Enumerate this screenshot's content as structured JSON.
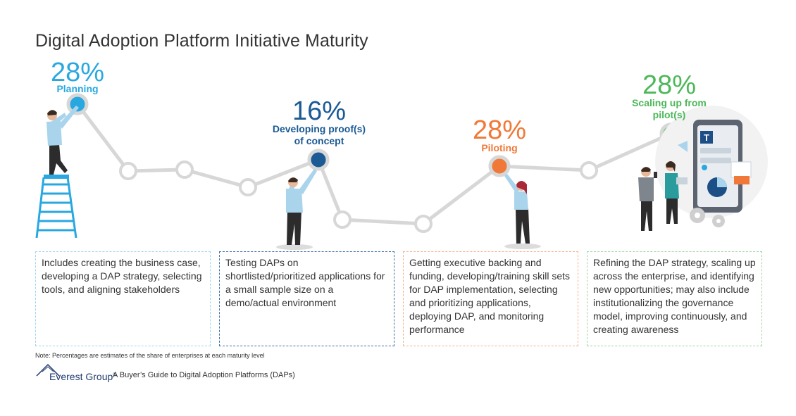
{
  "title": "Digital Adoption Platform Initiative Maturity",
  "stages": [
    {
      "percent": "28%",
      "label": "Planning",
      "color": "#29a8e0",
      "description": "Includes creating the business case, developing a DAP strategy, selecting tools, and aligning stakeholders"
    },
    {
      "percent": "16%",
      "label": "Developing proof(s) of concept",
      "color": "#1b5a94",
      "description": "Testing DAPs on shortlisted/prioritized applications for a small sample size on a demo/actual environment"
    },
    {
      "percent": "28%",
      "label": "Piloting",
      "color": "#f07838",
      "description": "Getting executive backing and funding, developing/training skill sets for DAP implementation, selecting and prioritizing applications, deploying DAP, and monitoring performance"
    },
    {
      "percent": "28%",
      "label": "Scaling up from pilot(s)",
      "color": "#4cb858",
      "description": "Refining the DAP strategy, scaling up across the enterprise, and identifying new opportunities; may also include institutionalizing the governance model, improving continuously, and creating awareness"
    }
  ],
  "note": "Note:  Percentages are estimates of the share of enterprises at each maturity level",
  "footer": {
    "brand": "Everest Group",
    "registered": "®",
    "guide": "A Buyer’s Guide to Digital Adoption Platforms (DAPs)"
  },
  "icons": [
    "check-icon",
    "ladder-icon",
    "gear-icon",
    "mobile-app-icon",
    "pie-chart-icon"
  ]
}
